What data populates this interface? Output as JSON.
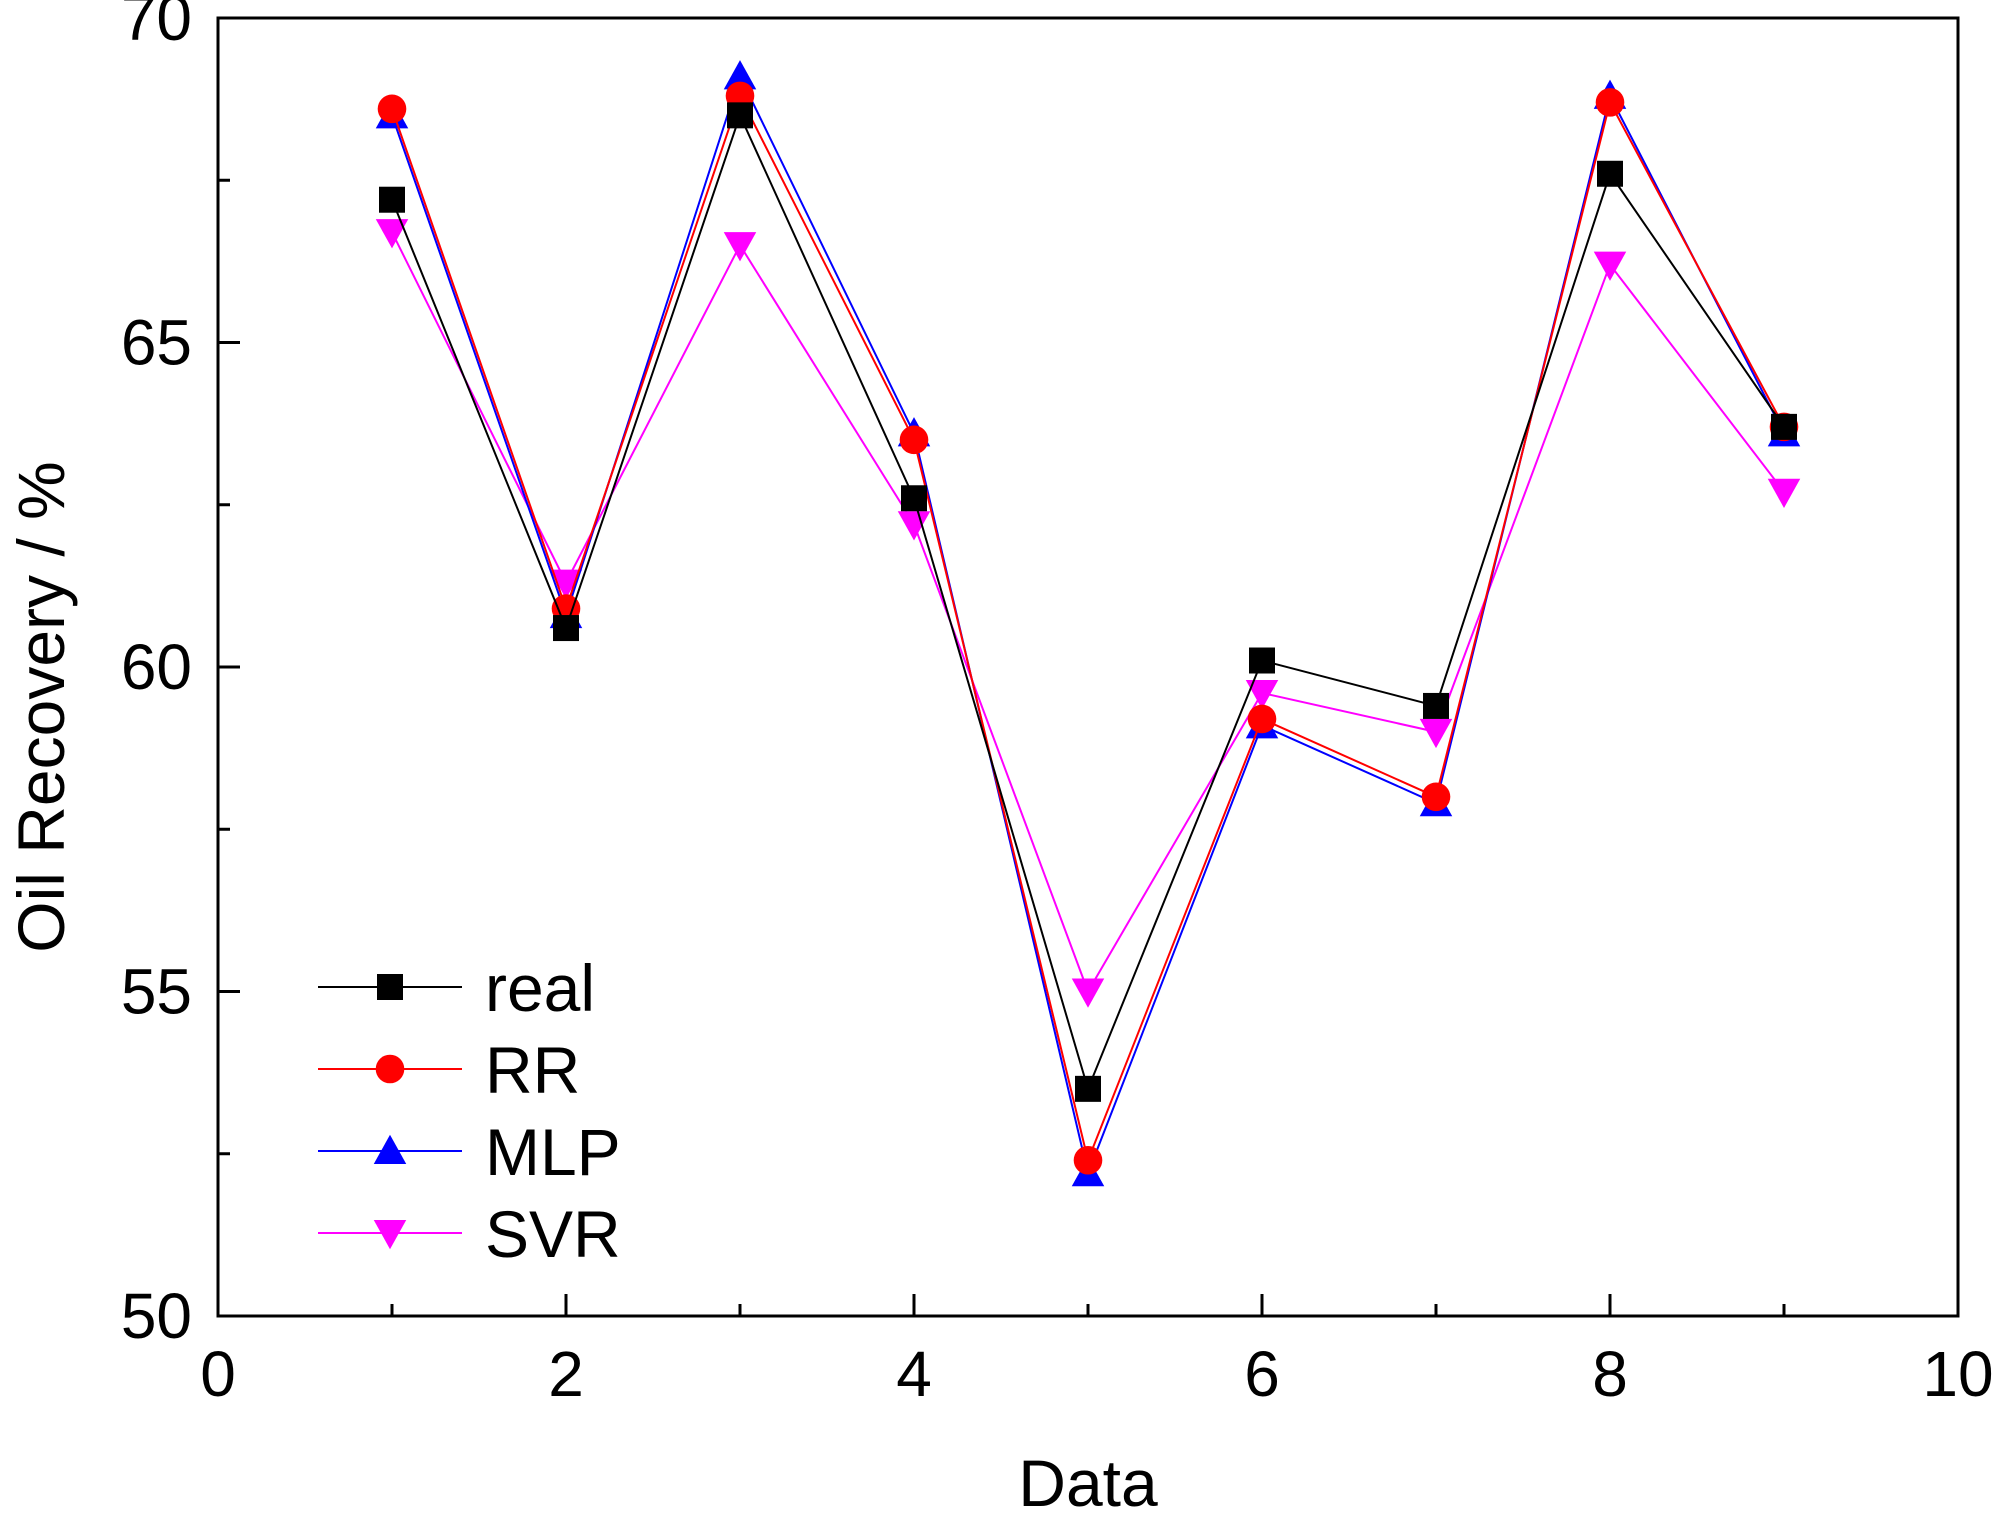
{
  "chart_data": {
    "type": "line",
    "title": "",
    "xlabel": "Data",
    "ylabel": "Oil Recovery / %",
    "xlim": [
      0,
      10
    ],
    "ylim": [
      50,
      70
    ],
    "xticks": [
      0,
      2,
      4,
      6,
      8,
      10
    ],
    "xtick_labels": [
      "0",
      "2",
      "4",
      "6",
      "8",
      "10"
    ],
    "yticks": [
      50,
      55,
      60,
      65,
      70
    ],
    "ytick_labels": [
      "50",
      "55",
      "60",
      "65",
      "70"
    ],
    "grid": false,
    "legend_position": "bottom-left",
    "x": [
      1,
      2,
      3,
      4,
      5,
      6,
      7,
      8,
      9
    ],
    "series": [
      {
        "name": "real",
        "color": "#000000",
        "marker": "square",
        "values": [
          67.2,
          60.6,
          68.5,
          62.6,
          53.5,
          60.1,
          59.4,
          67.6,
          63.7
        ]
      },
      {
        "name": "RR",
        "color": "#ff0000",
        "marker": "circle",
        "values": [
          68.6,
          60.9,
          68.8,
          63.5,
          52.4,
          59.2,
          58.0,
          68.7,
          63.7
        ]
      },
      {
        "name": "MLP",
        "color": "#0000ff",
        "marker": "triangle-up",
        "values": [
          68.5,
          60.8,
          69.1,
          63.6,
          52.2,
          59.1,
          57.9,
          68.8,
          63.6
        ]
      },
      {
        "name": "SVR",
        "color": "#ff00ff",
        "marker": "triangle-down",
        "values": [
          66.7,
          61.3,
          66.5,
          62.2,
          55.0,
          59.6,
          59.0,
          66.2,
          62.7
        ]
      }
    ]
  }
}
